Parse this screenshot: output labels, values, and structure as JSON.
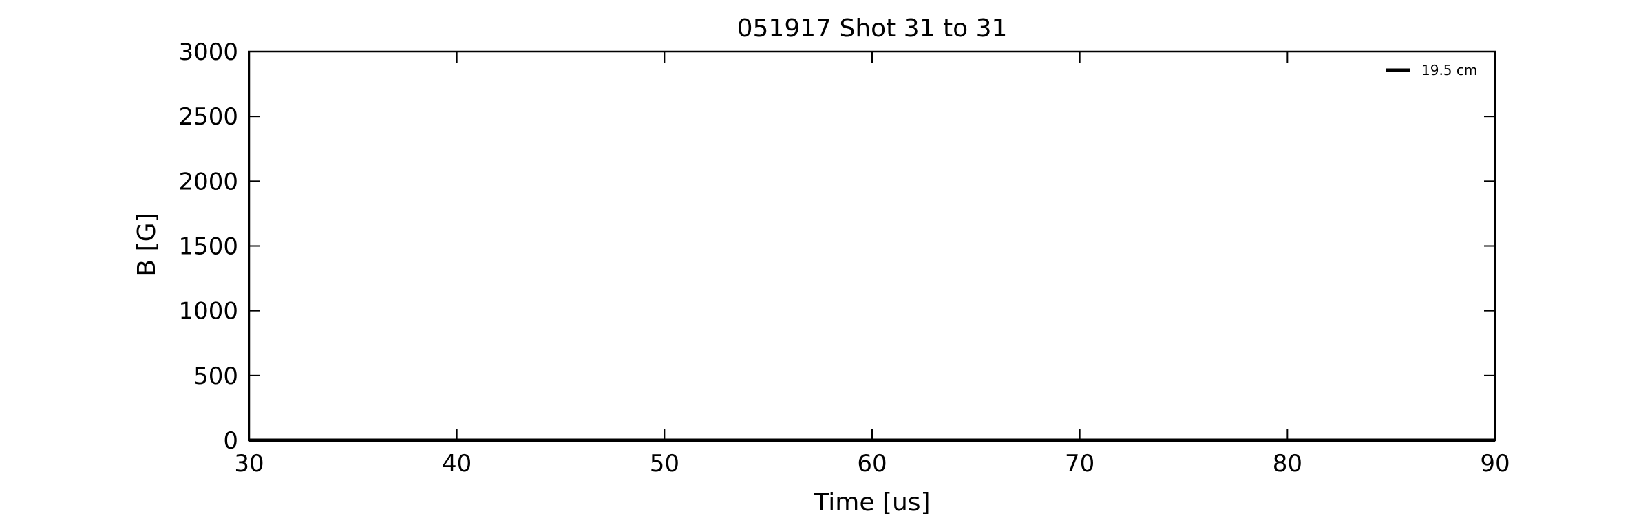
{
  "chart_data": {
    "type": "line",
    "title": "051917 Shot 31 to 31",
    "xlabel": "Time [us]",
    "ylabel": "B [G]",
    "xlim": [
      30,
      90
    ],
    "ylim": [
      0,
      3000
    ],
    "xticks": [
      30,
      40,
      50,
      60,
      70,
      80,
      90
    ],
    "yticks": [
      0,
      500,
      1000,
      1500,
      2000,
      2500,
      3000
    ],
    "grid": false,
    "legend_position": "top-right",
    "series": [
      {
        "name": "19.5 cm",
        "color": "#000000",
        "x": [
          30,
          40,
          50,
          60,
          70,
          80,
          90
        ],
        "y": [
          0,
          0,
          0,
          0,
          0,
          0,
          0
        ]
      }
    ]
  }
}
